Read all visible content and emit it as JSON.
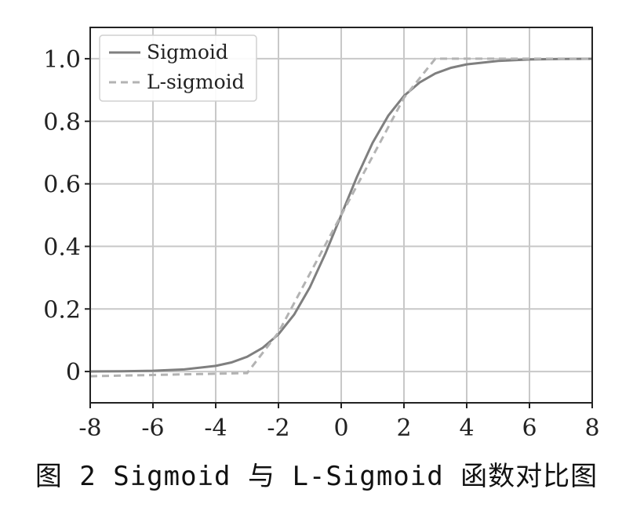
{
  "caption": "图 2  Sigmoid 与 L-Sigmoid 函数对比图",
  "chart_data": {
    "type": "line",
    "title": "",
    "xlabel": "",
    "ylabel": "",
    "xlim": [
      -8,
      8
    ],
    "ylim": [
      -0.1,
      1.1
    ],
    "xticks": [
      -8,
      -6,
      -4,
      -2,
      0,
      2,
      4,
      6,
      8
    ],
    "xtick_labels": [
      "-8",
      "-6",
      "-4",
      "-2",
      "0",
      "2",
      "4",
      "6",
      "8"
    ],
    "yticks": [
      0,
      0.2,
      0.4,
      0.6,
      0.8,
      1.0
    ],
    "ytick_labels": [
      "0",
      "0.2",
      "0.4",
      "0.6",
      "0.8",
      "1.0"
    ],
    "grid": true,
    "legend_position": "top-left",
    "series": [
      {
        "name": "Sigmoid",
        "style": "solid",
        "color": "#7f7f7f",
        "x": [
          -8,
          -7,
          -6,
          -5,
          -4,
          -3.5,
          -3,
          -2.5,
          -2,
          -1.5,
          -1,
          -0.5,
          0,
          0.5,
          1,
          1.5,
          2,
          2.5,
          3,
          3.5,
          4,
          5,
          6,
          7,
          8
        ],
        "y": [
          0.0003,
          0.0009,
          0.0025,
          0.0067,
          0.018,
          0.029,
          0.047,
          0.076,
          0.119,
          0.182,
          0.269,
          0.378,
          0.5,
          0.622,
          0.731,
          0.818,
          0.881,
          0.924,
          0.953,
          0.971,
          0.982,
          0.993,
          0.9975,
          0.9991,
          0.9997
        ]
      },
      {
        "name": "L-sigmoid",
        "style": "dashed",
        "color": "#b3b3b3",
        "x": [
          -8,
          -3,
          -2,
          2,
          3,
          8
        ],
        "y": [
          -0.015,
          -0.005,
          0.125,
          0.875,
          1.0,
          1.0
        ]
      }
    ]
  }
}
